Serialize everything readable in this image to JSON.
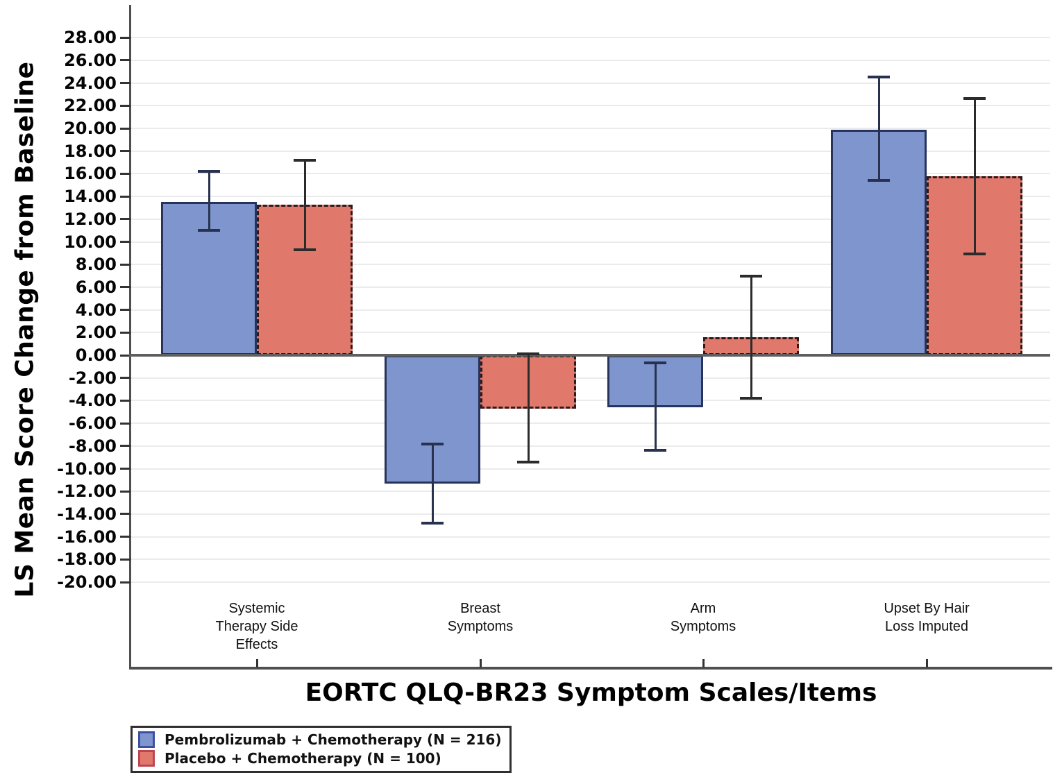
{
  "chart_data": {
    "type": "bar",
    "title": "",
    "xlabel": "EORTC QLQ-BR23 Symptom Scales/Items",
    "ylabel": "LS Mean Score Change from Baseline",
    "ylim": [
      -20,
      28
    ],
    "ytick_step": 2,
    "ytick_decimals": 2,
    "grid": true,
    "legend_position": "bottom-left",
    "categories": [
      {
        "label_lines": [
          "Systemic",
          "Therapy Side",
          "Effects"
        ]
      },
      {
        "label_lines": [
          "Breast",
          "Symptoms"
        ]
      },
      {
        "label_lines": [
          "Arm",
          "Symptoms"
        ]
      },
      {
        "label_lines": [
          "Upset By Hair",
          "Loss Imputed"
        ]
      }
    ],
    "series": [
      {
        "name": "Pembrolizumab + Chemotherapy (N = 216)",
        "fill": "#7E96CD",
        "border": "#26335C",
        "border_style": "solid",
        "error_color": "#283250",
        "swatch_border": "#3D4FA1",
        "values": [
          13.5,
          -11.3,
          -4.6,
          19.9
        ],
        "ci_low": [
          11.0,
          -14.8,
          -8.4,
          15.4
        ],
        "ci_high": [
          16.2,
          -7.8,
          -0.7,
          24.5
        ]
      },
      {
        "name": "Placebo + Chemotherapy (N = 100)",
        "fill": "#E0796C",
        "border": "#30191A",
        "border_style": "dashed",
        "error_color": "#2b2b2b",
        "swatch_border": "#BE4450",
        "values": [
          13.3,
          -4.7,
          1.6,
          15.8
        ],
        "ci_low": [
          9.3,
          -9.4,
          -3.8,
          8.9
        ],
        "ci_high": [
          17.2,
          0.1,
          7.0,
          22.6
        ]
      }
    ],
    "axis_colors": {
      "axis_line": "#4f4f4f",
      "zero_line": "#5f5f5f",
      "gridline": "#ebebee",
      "tick": "#333333"
    }
  }
}
